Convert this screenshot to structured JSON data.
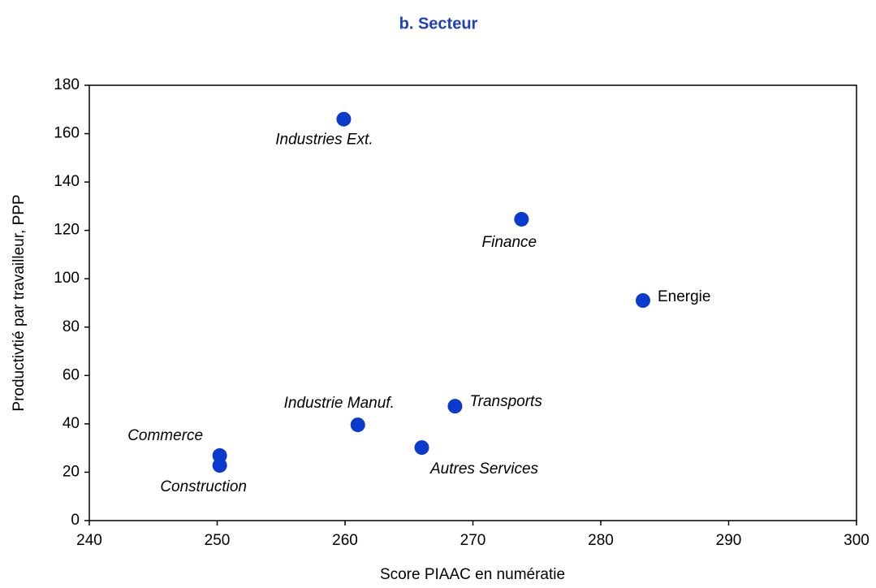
{
  "chart_data": {
    "type": "scatter",
    "title": "b. Secteur",
    "xlabel": "Score PIAAC en numératie",
    "ylabel": "Productivtié par travailleur, PPP",
    "labels": [
      "Industries Ext.",
      "Finance",
      "Energie",
      "Transports",
      "Industrie Manuf.",
      "Autres Services",
      "Commerce",
      "Construction"
    ],
    "x": [
      259.9,
      273.8,
      283.3,
      268.6,
      261.0,
      266.0,
      250.2,
      250.2
    ],
    "values": [
      166,
      124.6,
      91,
      47.3,
      39.6,
      30.2,
      26.9,
      22.8
    ],
    "color": "#0b3bcc",
    "xlim": [
      240,
      300
    ],
    "xticks": [
      240,
      250,
      260,
      270,
      280,
      290,
      300
    ],
    "ylim": [
      0,
      180
    ],
    "yticks": [
      0,
      20,
      40,
      60,
      80,
      100,
      120,
      140,
      160,
      180
    ],
    "grid": false
  }
}
